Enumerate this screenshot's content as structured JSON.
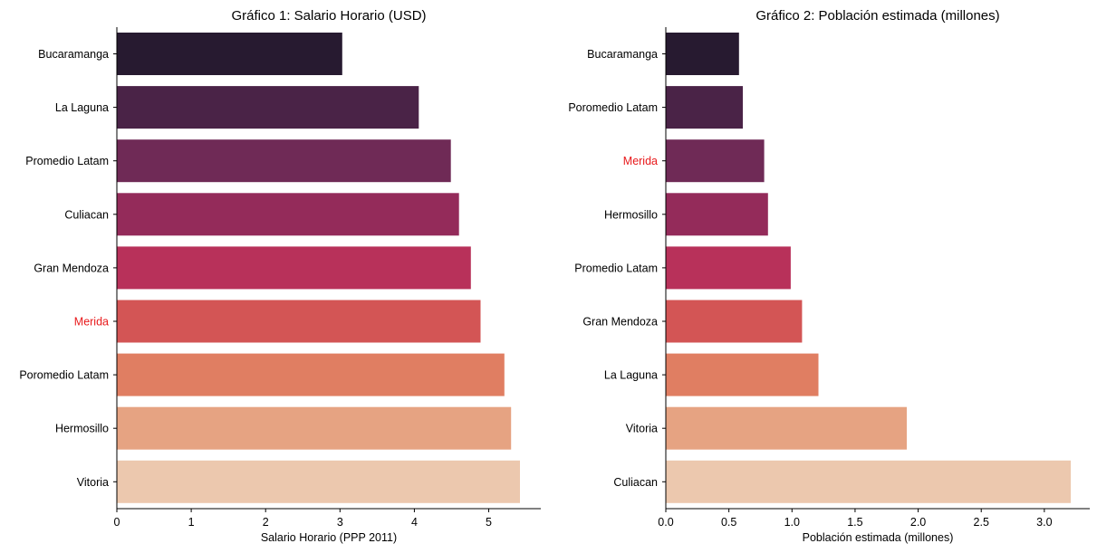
{
  "chart_data": [
    {
      "type": "bar",
      "orientation": "horizontal",
      "title": "Gráfico 1: Salario Horario (USD)",
      "xlabel": "Salario Horario (PPP 2011)",
      "ylabel": "",
      "xlim": [
        0,
        5.7
      ],
      "xticks": [
        "0",
        "1",
        "2",
        "3",
        "4",
        "5"
      ],
      "categories": [
        "Bucaramanga",
        "La Laguna",
        "Promedio Latam",
        "Culiacan",
        "Gran Mendoza",
        "Merida",
        "Poromedio Latam",
        "Hermosillo",
        "Vitoria"
      ],
      "values": [
        3.03,
        4.06,
        4.49,
        4.6,
        4.76,
        4.89,
        5.21,
        5.3,
        5.42
      ],
      "highlight_category": "Merida",
      "highlight_color": "#e8191b"
    },
    {
      "type": "bar",
      "orientation": "horizontal",
      "title": "Gráfico 2: Población estimada (millones)",
      "xlabel": "Población estimada (millones)",
      "ylabel": "",
      "xlim": [
        0,
        3.36
      ],
      "xticks": [
        "0.0",
        "0.5",
        "1.0",
        "1.5",
        "2.0",
        "2.5",
        "3.0"
      ],
      "categories": [
        "Bucaramanga",
        "Poromedio Latam",
        "Merida",
        "Hermosillo",
        "Promedio Latam",
        "Gran Mendoza",
        "La Laguna",
        "Vitoria",
        "Culiacan"
      ],
      "values": [
        0.58,
        0.61,
        0.78,
        0.81,
        0.99,
        1.08,
        1.21,
        1.91,
        3.21
      ],
      "highlight_category": "Merida",
      "highlight_color": "#e8191b"
    }
  ],
  "palette": [
    "#271a30",
    "#4a2347",
    "#6f2a56",
    "#942b5a",
    "#b8315a",
    "#d35555",
    "#e07e62",
    "#e6a382",
    "#ecc8ae"
  ]
}
